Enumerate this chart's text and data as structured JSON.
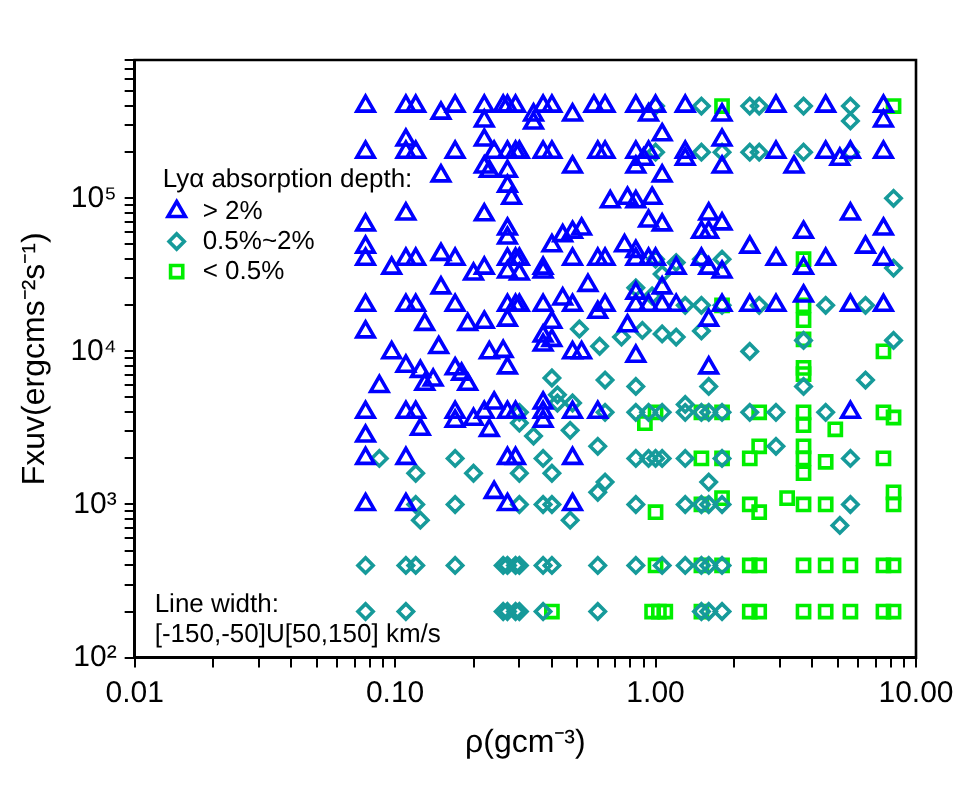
{
  "chart_data": {
    "type": "scatter",
    "xlabel": "ρ(gcm⁻³)",
    "ylabel": "Fxuv(ergcms⁻²s⁻¹)",
    "legend_title": "Lyα absorption depth:",
    "legend": "left",
    "log": "xy",
    "annotations": [
      "Line width:\n[-150,-50]U[50,150] km/s"
    ],
    "xlim": [
      0.01,
      10
    ],
    "ylim": [
      100,
      800000
    ],
    "xticks": [
      {
        "value": 0.01,
        "label": "0.01"
      },
      {
        "value": 0.02,
        "label": null
      },
      {
        "value": 0.03,
        "label": null
      },
      {
        "value": 0.04,
        "label": null
      },
      {
        "value": 0.05,
        "label": null
      },
      {
        "value": 0.06,
        "label": null
      },
      {
        "value": 0.07,
        "label": null
      },
      {
        "value": 0.08,
        "label": null
      },
      {
        "value": 0.09,
        "label": null
      },
      {
        "value": 0.1,
        "label": "0.10"
      },
      {
        "value": 0.2,
        "label": null
      },
      {
        "value": 0.3,
        "label": null
      },
      {
        "value": 0.4,
        "label": null
      },
      {
        "value": 0.5,
        "label": null
      },
      {
        "value": 0.6,
        "label": null
      },
      {
        "value": 0.7,
        "label": null
      },
      {
        "value": 0.8,
        "label": null
      },
      {
        "value": 0.9,
        "label": null
      },
      {
        "value": 1,
        "label": "1.00"
      },
      {
        "value": 2,
        "label": null
      },
      {
        "value": 3,
        "label": null
      },
      {
        "value": 4,
        "label": null
      },
      {
        "value": 5,
        "label": null
      },
      {
        "value": 6,
        "label": null
      },
      {
        "value": 7,
        "label": null
      },
      {
        "value": 8,
        "label": null
      },
      {
        "value": 9,
        "label": null
      },
      {
        "value": 10,
        "label": "10.00"
      }
    ],
    "yticks": [
      {
        "value": 100,
        "label": "10²"
      },
      {
        "value": 200,
        "label": null
      },
      {
        "value": 300,
        "label": null
      },
      {
        "value": 400,
        "label": null
      },
      {
        "value": 500,
        "label": null
      },
      {
        "value": 600,
        "label": null
      },
      {
        "value": 700,
        "label": null
      },
      {
        "value": 800,
        "label": null
      },
      {
        "value": 900,
        "label": null
      },
      {
        "value": 1000,
        "label": "10³"
      },
      {
        "value": 2000,
        "label": null
      },
      {
        "value": 3000,
        "label": null
      },
      {
        "value": 4000,
        "label": null
      },
      {
        "value": 5000,
        "label": null
      },
      {
        "value": 6000,
        "label": null
      },
      {
        "value": 7000,
        "label": null
      },
      {
        "value": 8000,
        "label": null
      },
      {
        "value": 9000,
        "label": null
      },
      {
        "value": 10000,
        "label": "10⁴"
      },
      {
        "value": 20000,
        "label": null
      },
      {
        "value": 30000,
        "label": null
      },
      {
        "value": 40000,
        "label": null
      },
      {
        "value": 50000,
        "label": null
      },
      {
        "value": 60000,
        "label": null
      },
      {
        "value": 70000,
        "label": null
      },
      {
        "value": 80000,
        "label": null
      },
      {
        "value": 90000,
        "label": null
      },
      {
        "value": 100000,
        "label": "10⁵"
      },
      {
        "value": 200000,
        "label": null
      },
      {
        "value": 300000,
        "label": null
      },
      {
        "value": 400000,
        "label": null
      },
      {
        "value": 500000,
        "label": null
      },
      {
        "value": 600000,
        "label": null
      },
      {
        "value": 700000,
        "label": null
      },
      {
        "value": 800000,
        "label": null
      }
    ],
    "series": [
      {
        "name": "> 2%",
        "color": "#0000ff",
        "marker": "triangle",
        "x": [
          0.077,
          0.11,
          0.12,
          0.15,
          0.17,
          0.22,
          0.26,
          0.27,
          0.29,
          0.37,
          0.4,
          0.48,
          0.58,
          0.64,
          0.84,
          1.0,
          1.3,
          1.8,
          2.9,
          4.5,
          7.5,
          0.22,
          0.34,
          0.34,
          0.94,
          7.5,
          0.077,
          0.11,
          0.12,
          0.11,
          0.17,
          0.22,
          0.24,
          0.27,
          0.29,
          0.3,
          0.37,
          0.4,
          0.6,
          0.64,
          0.84,
          0.94,
          1.3,
          1.8,
          2.9,
          3.4,
          4.5,
          5.1,
          5.6,
          7.5,
          1.8,
          0.15,
          0.22,
          0.23,
          0.27,
          0.27,
          0.28,
          0.48,
          0.84,
          0.9,
          1.06,
          1.06,
          1.3,
          0.67,
          0.78,
          0.84,
          0.97,
          0.11,
          0.22,
          0.077,
          0.27,
          0.27,
          0.44,
          0.48,
          0.52,
          0.94,
          1.06,
          1.5,
          1.6,
          1.6,
          1.8,
          3.7,
          5.6,
          7.5,
          6.4,
          2.3,
          0.077,
          0.077,
          0.097,
          0.11,
          0.12,
          0.15,
          0.17,
          0.2,
          0.22,
          0.27,
          0.29,
          0.3,
          0.37,
          0.4,
          0.48,
          0.6,
          0.64,
          0.76,
          0.84,
          0.84,
          0.94,
          1.0,
          1.2,
          1.5,
          1.6,
          1.8,
          2.9,
          3.7,
          4.5,
          7.5,
          0.27,
          0.3,
          0.37,
          0.55,
          1.06,
          0.077,
          0.077,
          0.11,
          0.12,
          0.13,
          0.15,
          0.17,
          0.19,
          0.22,
          0.27,
          0.29,
          0.3,
          0.37,
          0.4,
          0.44,
          0.48,
          0.6,
          0.64,
          0.84,
          0.94,
          1.06,
          1.2,
          1.6,
          1.8,
          2.3,
          2.9,
          3.7,
          5.6,
          7.5,
          0.27,
          0.37,
          0.4,
          0.78,
          0.84,
          0.097,
          0.11,
          0.125,
          0.13,
          0.147,
          0.17,
          0.19,
          0.23,
          0.26,
          0.27,
          0.37,
          0.48,
          0.52,
          0.84,
          1.6,
          0.087,
          0.14,
          0.18,
          0.077,
          0.077,
          0.11,
          0.12,
          0.125,
          0.17,
          0.17,
          0.2,
          0.22,
          0.24,
          0.27,
          0.29,
          0.23,
          0.37,
          0.37,
          0.37,
          0.48,
          0.6,
          5.6,
          0.077,
          0.11,
          0.27,
          0.29,
          0.48,
          0.077,
          0.11,
          0.24,
          0.27,
          0.48
        ],
        "values": [
          400000,
          400000,
          400000,
          360000,
          400000,
          400000,
          400000,
          400000,
          400000,
          400000,
          400000,
          350000,
          400000,
          400000,
          400000,
          400000,
          400000,
          350000,
          400000,
          400000,
          400000,
          320000,
          350000,
          310000,
          350000,
          320000,
          200000,
          240000,
          200000,
          200000,
          200000,
          240000,
          200000,
          200000,
          200000,
          200000,
          200000,
          200000,
          200000,
          200000,
          200000,
          200000,
          200000,
          240000,
          200000,
          160000,
          200000,
          180000,
          200000,
          200000,
          160000,
          140000,
          160000,
          150000,
          150000,
          120000,
          100000,
          160000,
          160000,
          180000,
          260000,
          140000,
          180000,
          95000,
          100000,
          95000,
          100000,
          79000,
          78000,
          67000,
          63000,
          55000,
          57000,
          60000,
          63000,
          71000,
          67000,
          60000,
          79000,
          60000,
          68000,
          60000,
          79000,
          63000,
          48000,
          48000,
          40000,
          48000,
          35000,
          40000,
          40000,
          43000,
          40000,
          32000,
          35000,
          40000,
          40000,
          40000,
          35000,
          49000,
          40000,
          40000,
          40000,
          49000,
          45000,
          40000,
          40000,
          40000,
          35000,
          40000,
          35000,
          33000,
          40000,
          35000,
          40000,
          40000,
          33000,
          32000,
          33000,
          27000,
          26000,
          20000,
          13400,
          20000,
          20000,
          15000,
          26000,
          20000,
          15000,
          15500,
          20000,
          20000,
          20000,
          20000,
          15500,
          22000,
          20000,
          18000,
          20000,
          20000,
          20000,
          20000,
          20000,
          16000,
          20000,
          20000,
          20000,
          23000,
          20000,
          20000,
          16000,
          12600,
          11800,
          14700,
          24000,
          9800,
          8000,
          7400,
          6100,
          10600,
          7700,
          6100,
          9800,
          10000,
          7800,
          11000,
          9800,
          9800,
          9300,
          7800,
          5900,
          6500,
          7100,
          4000,
          2800,
          4000,
          4000,
          3100,
          4000,
          3500,
          3600,
          4000,
          4600,
          4000,
          4000,
          3050,
          4000,
          4600,
          3500,
          4000,
          4000,
          4000,
          2000,
          2000,
          2000,
          2000,
          2000,
          1000,
          1000,
          1200,
          1000,
          1000
        ]
      },
      {
        "name": "0.5%~2%",
        "color": "#169a9a",
        "marker": "diamond",
        "x": [
          1.0,
          1.5,
          2.3,
          2.5,
          3.7,
          5.6,
          5.6,
          1.0,
          1.5,
          1.8,
          2.3,
          2.5,
          3.7,
          5.6,
          8.2,
          1.06,
          1.2,
          1.5,
          1.8,
          8.2,
          1.0,
          0.84,
          0.97,
          1.3,
          1.5,
          1.8,
          2.5,
          4.5,
          6.4,
          0.51,
          0.61,
          0.74,
          0.89,
          1.06,
          1.2,
          1.5,
          2.3,
          3.7,
          8.2,
          0.4,
          0.42,
          0.64,
          0.84,
          1.6,
          3.7,
          6.4,
          0.3,
          0.42,
          0.48,
          0.64,
          0.84,
          0.94,
          1.06,
          1.3,
          1.5,
          1.6,
          1.8,
          2.3,
          2.9,
          4.5,
          0.3,
          0.34,
          0.47,
          1.3,
          0.087,
          0.17,
          0.2,
          0.3,
          0.37,
          0.4,
          0.6,
          0.84,
          0.94,
          1.0,
          1.06,
          1.3,
          1.8,
          2.9,
          5.6,
          0.12,
          0.12,
          0.125,
          0.17,
          0.3,
          0.37,
          0.4,
          0.84,
          1.3,
          1.5,
          1.6,
          1.8,
          5.6,
          5.1,
          0.47,
          0.6,
          0.64,
          1.6,
          0.077,
          0.11,
          0.12,
          0.17,
          0.26,
          0.27,
          0.29,
          0.3,
          0.37,
          0.4,
          0.6,
          0.84,
          1.06,
          1.3,
          1.5,
          1.6,
          1.8,
          0.077,
          0.11,
          0.26,
          0.27,
          0.29,
          0.3,
          0.37,
          0.6,
          1.5,
          1.6,
          1.8
        ],
        "values": [
          400000,
          400000,
          400000,
          400000,
          400000,
          400000,
          320000,
          200000,
          200000,
          200000,
          200000,
          200000,
          200000,
          200000,
          100000,
          32000,
          38000,
          40000,
          40000,
          35000,
          40000,
          26000,
          23000,
          20000,
          20000,
          20000,
          20000,
          20000,
          20000,
          14000,
          10800,
          12400,
          13700,
          13000,
          12400,
          13600,
          10000,
          11800,
          11800,
          6700,
          5200,
          6500,
          5900,
          5900,
          5900,
          6500,
          4000,
          4600,
          4600,
          4000,
          4000,
          4000,
          4000,
          4000,
          4000,
          4000,
          4000,
          4000,
          4000,
          4000,
          3400,
          2800,
          3050,
          4500,
          2000,
          2000,
          1600,
          1600,
          2000,
          1600,
          2400,
          2000,
          2000,
          2000,
          2000,
          2000,
          2000,
          2400,
          2000,
          1600,
          1000,
          790,
          1000,
          1000,
          1000,
          1000,
          1000,
          1000,
          1000,
          1000,
          1000,
          1000,
          730,
          790,
          1200,
          1400,
          1400,
          400,
          400,
          400,
          400,
          400,
          400,
          400,
          400,
          400,
          400,
          400,
          400,
          400,
          400,
          400,
          400,
          400,
          200,
          200,
          200,
          200,
          200,
          200,
          200,
          200,
          200,
          200,
          200
        ]
      },
      {
        "name": "< 0.5%",
        "color": "#00ee00",
        "marker": "square",
        "x": [
          1.8,
          8.2,
          3.7,
          1.8,
          3.7,
          3.7,
          3.7,
          7.5,
          3.7,
          3.7,
          0.91,
          1.0,
          1.5,
          1.8,
          2.5,
          3.7,
          3.7,
          4.9,
          7.5,
          8.2,
          1.5,
          1.8,
          2.3,
          2.5,
          3.7,
          3.7,
          3.7,
          4.5,
          7.5,
          1.0,
          1.5,
          1.8,
          2.3,
          2.5,
          3.2,
          3.7,
          4.5,
          8.2,
          8.2,
          1.0,
          1.5,
          1.8,
          2.3,
          2.5,
          3.7,
          4.5,
          5.6,
          7.5,
          8.2,
          0.4,
          0.97,
          1.03,
          1.09,
          1.5,
          2.3,
          2.5,
          3.7,
          4.5,
          5.6,
          7.5,
          8.2
        ],
        "values": [
          400000,
          400000,
          40000,
          20000,
          20000,
          16000,
          12000,
          10000,
          7800,
          7100,
          3400,
          4000,
          4000,
          4000,
          4000,
          4000,
          3300,
          3100,
          4000,
          3700,
          2000,
          2000,
          2000,
          2400,
          2400,
          2000,
          1600,
          1900,
          2000,
          890,
          1000,
          1100,
          1000,
          890,
          1100,
          1000,
          1000,
          1200,
          1000,
          400,
          400,
          400,
          400,
          400,
          400,
          400,
          400,
          400,
          400,
          200,
          200,
          200,
          200,
          200,
          200,
          200,
          200,
          200,
          200,
          200,
          200
        ]
      }
    ]
  }
}
